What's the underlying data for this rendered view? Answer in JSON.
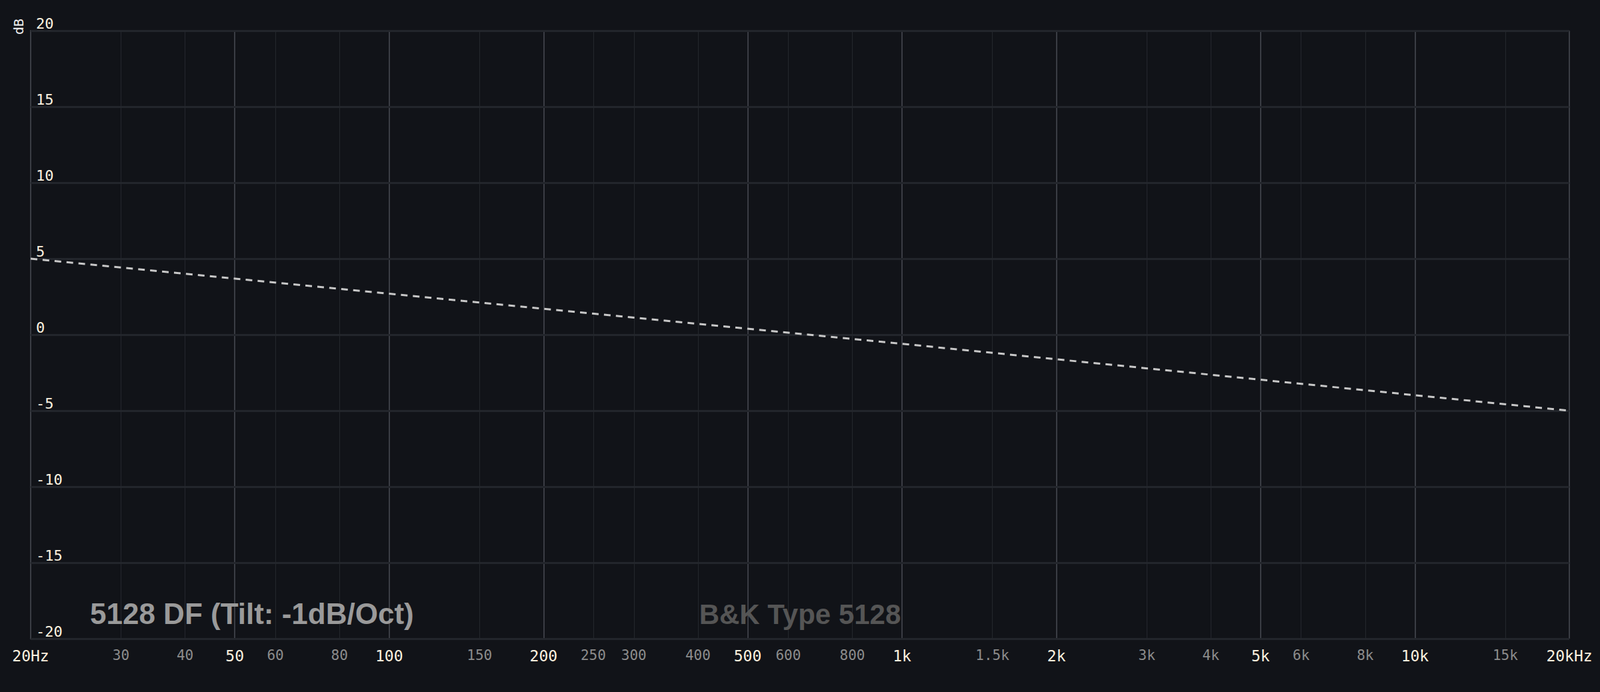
{
  "chart_data": {
    "type": "line",
    "title": "5128 DF (Tilt: -1dB/Oct)",
    "subtitle": "B&K Type 5128",
    "ylabel": "dB",
    "x": [
      20,
      100,
      1000,
      20000
    ],
    "values": [
      5,
      2.7,
      -0.6,
      -5
    ],
    "color": "#c8c8c8",
    "line_style": "dashed",
    "log": "x",
    "grid": true,
    "xlim": [
      20,
      20000
    ],
    "ylim": [
      -20,
      20
    ],
    "xticks": [
      {
        "value": 20,
        "label": "20Hz"
      },
      30,
      40,
      50,
      60,
      80,
      100,
      150,
      200,
      250,
      300,
      400,
      500,
      600,
      800,
      {
        "value": 1000,
        "label": "1k"
      },
      {
        "value": 1500,
        "label": "1.5k"
      },
      {
        "value": 2000,
        "label": "2k"
      },
      {
        "value": 3000,
        "label": "3k"
      },
      {
        "value": 4000,
        "label": "4k"
      },
      {
        "value": 5000,
        "label": "5k"
      },
      {
        "value": 6000,
        "label": "6k"
      },
      {
        "value": 8000,
        "label": "8k"
      },
      {
        "value": 10000,
        "label": "10k"
      },
      {
        "value": 15000,
        "label": "15k"
      },
      {
        "value": 20000,
        "label": "20kHz"
      }
    ],
    "yticks": [
      -20,
      -15,
      -10,
      -5,
      0,
      5,
      10,
      15,
      20
    ]
  }
}
